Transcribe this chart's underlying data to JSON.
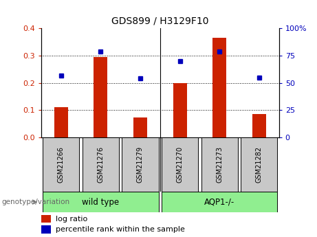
{
  "title": "GDS899 / H3129F10",
  "categories": [
    "GSM21266",
    "GSM21276",
    "GSM21279",
    "GSM21270",
    "GSM21273",
    "GSM21282"
  ],
  "log_ratio": [
    0.11,
    0.295,
    0.073,
    0.2,
    0.365,
    0.085
  ],
  "percentile_rank": [
    57,
    79,
    54,
    70,
    79,
    55
  ],
  "ylim_left": [
    0,
    0.4
  ],
  "ylim_right": [
    0,
    100
  ],
  "yticks_left": [
    0,
    0.1,
    0.2,
    0.3,
    0.4
  ],
  "yticks_right": [
    0,
    25,
    50,
    75,
    100
  ],
  "ytick_labels_right": [
    "0",
    "25",
    "50",
    "75",
    "100%"
  ],
  "group_wt_label": "wild type",
  "group_aqp_label": "AQP1-/-",
  "group_color": "#90EE90",
  "bar_color": "#CC2200",
  "dot_color": "#0000BB",
  "left_tick_color": "#CC2200",
  "right_tick_color": "#0000BB",
  "legend_bar_label": "log ratio",
  "legend_dot_label": "percentile rank within the sample",
  "group_label_text": "genotype/variation",
  "tick_label_bg": "#C8C8C8",
  "title_fontsize": 10
}
